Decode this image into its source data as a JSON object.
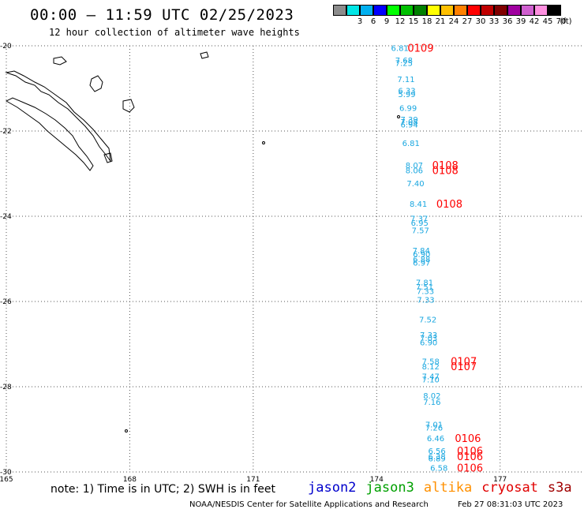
{
  "title": "00:00 – 11:59 UTC 02/25/2023",
  "subtitle": "12 hour collection of altimeter wave heights",
  "legend": {
    "unit": "(ft)",
    "bins": [
      {
        "label": "",
        "color": "#8c8c8c"
      },
      {
        "label": "3",
        "color": "#00e6e6"
      },
      {
        "label": "6",
        "color": "#00b0f0"
      },
      {
        "label": "9",
        "color": "#0000ff"
      },
      {
        "label": "12",
        "color": "#00ff00"
      },
      {
        "label": "15",
        "color": "#00c000"
      },
      {
        "label": "18",
        "color": "#008000"
      },
      {
        "label": "21",
        "color": "#ffff00"
      },
      {
        "label": "24",
        "color": "#ffc000"
      },
      {
        "label": "27",
        "color": "#ff8000"
      },
      {
        "label": "30",
        "color": "#ff0000"
      },
      {
        "label": "33",
        "color": "#c00000"
      },
      {
        "label": "36",
        "color": "#800000"
      },
      {
        "label": "39",
        "color": "#a000a0"
      },
      {
        "label": "42",
        "color": "#d060d0"
      },
      {
        "label": "45",
        "color": "#ff90e0"
      },
      {
        "label": "70",
        "color": "#000000"
      }
    ]
  },
  "axes": {
    "lat_labels": [
      "-20",
      "-22",
      "-24",
      "-26",
      "-28",
      "-30"
    ],
    "lon_labels": [
      "165",
      "168",
      "171",
      "174",
      "177"
    ]
  },
  "observations": [
    {
      "lat": -20.05,
      "lon": 174.35,
      "swh": "6.81",
      "color": "#1aa7e0"
    },
    {
      "lat": -20.33,
      "lon": 174.45,
      "swh": "7.68",
      "color": "#1aa7e0"
    },
    {
      "lat": -20.4,
      "lon": 174.45,
      "swh": "7.25",
      "color": "#1aa7e0"
    },
    {
      "lat": -20.78,
      "lon": 174.5,
      "swh": "7.11",
      "color": "#1aa7e0"
    },
    {
      "lat": -21.05,
      "lon": 174.52,
      "swh": "6.33",
      "color": "#1aa7e0"
    },
    {
      "lat": -21.13,
      "lon": 174.52,
      "swh": "5.99",
      "color": "#1aa7e0"
    },
    {
      "lat": -21.45,
      "lon": 174.55,
      "swh": "6.99",
      "color": "#1aa7e0"
    },
    {
      "lat": -21.72,
      "lon": 174.58,
      "swh": "7.39",
      "color": "#1aa7e0"
    },
    {
      "lat": -21.78,
      "lon": 174.58,
      "swh": "7.08",
      "color": "#1aa7e0"
    },
    {
      "lat": -21.84,
      "lon": 174.58,
      "swh": "6.94",
      "color": "#1aa7e0"
    },
    {
      "lat": -22.28,
      "lon": 174.62,
      "swh": "6.81",
      "color": "#1aa7e0"
    },
    {
      "lat": -22.8,
      "lon": 174.7,
      "swh": "8.07",
      "color": "#1aa7e0"
    },
    {
      "lat": -22.92,
      "lon": 174.7,
      "swh": "8.06",
      "color": "#1aa7e0"
    },
    {
      "lat": -23.22,
      "lon": 174.73,
      "swh": "7.40",
      "color": "#1aa7e0"
    },
    {
      "lat": -23.7,
      "lon": 174.8,
      "swh": "8.41",
      "color": "#1aa7e0"
    },
    {
      "lat": -24.05,
      "lon": 174.82,
      "swh": "7.37",
      "color": "#1aa7e0"
    },
    {
      "lat": -24.15,
      "lon": 174.83,
      "swh": "6.95",
      "color": "#1aa7e0"
    },
    {
      "lat": -24.32,
      "lon": 174.85,
      "swh": "7.57",
      "color": "#1aa7e0"
    },
    {
      "lat": -24.8,
      "lon": 174.87,
      "swh": "7.84",
      "color": "#1aa7e0"
    },
    {
      "lat": -24.88,
      "lon": 174.88,
      "swh": "6.90",
      "color": "#1aa7e0"
    },
    {
      "lat": -25.0,
      "lon": 174.88,
      "swh": "6.88",
      "color": "#1aa7e0"
    },
    {
      "lat": -25.08,
      "lon": 174.88,
      "swh": "6.97",
      "color": "#1aa7e0"
    },
    {
      "lat": -25.55,
      "lon": 174.95,
      "swh": "7.81",
      "color": "#1aa7e0"
    },
    {
      "lat": -25.65,
      "lon": 174.95,
      "swh": "7.51",
      "color": "#1aa7e0"
    },
    {
      "lat": -25.75,
      "lon": 174.97,
      "swh": "7.33",
      "color": "#1aa7e0"
    },
    {
      "lat": -25.95,
      "lon": 174.98,
      "swh": "7.33",
      "color": "#1aa7e0"
    },
    {
      "lat": -26.42,
      "lon": 175.03,
      "swh": "7.52",
      "color": "#1aa7e0"
    },
    {
      "lat": -26.78,
      "lon": 175.05,
      "swh": "7.33",
      "color": "#1aa7e0"
    },
    {
      "lat": -26.85,
      "lon": 175.05,
      "swh": "7.03",
      "color": "#1aa7e0"
    },
    {
      "lat": -26.95,
      "lon": 175.05,
      "swh": "6.90",
      "color": "#1aa7e0"
    },
    {
      "lat": -27.4,
      "lon": 175.1,
      "swh": "7.58",
      "color": "#1aa7e0"
    },
    {
      "lat": -27.52,
      "lon": 175.1,
      "swh": "8.12",
      "color": "#1aa7e0"
    },
    {
      "lat": -27.75,
      "lon": 175.1,
      "swh": "7.47",
      "color": "#1aa7e0"
    },
    {
      "lat": -27.82,
      "lon": 175.1,
      "swh": "7.10",
      "color": "#1aa7e0"
    },
    {
      "lat": -28.2,
      "lon": 175.13,
      "swh": "8.02",
      "color": "#1aa7e0"
    },
    {
      "lat": -28.35,
      "lon": 175.13,
      "swh": "7.16",
      "color": "#1aa7e0"
    },
    {
      "lat": -28.88,
      "lon": 175.18,
      "swh": "7.01",
      "color": "#1aa7e0"
    },
    {
      "lat": -28.95,
      "lon": 175.18,
      "swh": "7.26",
      "color": "#1aa7e0"
    },
    {
      "lat": -29.2,
      "lon": 175.22,
      "swh": "6.46",
      "color": "#1aa7e0"
    },
    {
      "lat": -29.5,
      "lon": 175.25,
      "swh": "6.56",
      "color": "#1aa7e0"
    },
    {
      "lat": -29.63,
      "lon": 175.25,
      "swh": "6.38",
      "color": "#1aa7e0"
    },
    {
      "lat": -29.68,
      "lon": 175.25,
      "swh": "6.89",
      "color": "#1aa7e0"
    },
    {
      "lat": -29.9,
      "lon": 175.3,
      "swh": "6.58",
      "color": "#1aa7e0"
    }
  ],
  "pass_labels": [
    {
      "lat": -20.05,
      "lon": 174.75,
      "text": "0109",
      "color": "#ff0000"
    },
    {
      "lat": -22.8,
      "lon": 175.35,
      "text": "0108",
      "color": "#ff0000"
    },
    {
      "lat": -22.92,
      "lon": 175.35,
      "text": "0108",
      "color": "#ff0000"
    },
    {
      "lat": -23.7,
      "lon": 175.45,
      "text": "0108",
      "color": "#ff0000"
    },
    {
      "lat": -27.4,
      "lon": 175.8,
      "text": "0107",
      "color": "#ff0000"
    },
    {
      "lat": -27.52,
      "lon": 175.8,
      "text": "0107",
      "color": "#ff0000"
    },
    {
      "lat": -29.2,
      "lon": 175.9,
      "text": "0106",
      "color": "#ff0000"
    },
    {
      "lat": -29.5,
      "lon": 175.95,
      "text": "0106",
      "color": "#ff0000"
    },
    {
      "lat": -29.63,
      "lon": 175.95,
      "text": "0106",
      "color": "#ff0000"
    },
    {
      "lat": -29.9,
      "lon": 175.95,
      "text": "0106",
      "color": "#ff0000"
    }
  ],
  "note": "note: 1) Time is in UTC; 2) SWH is in feet",
  "satellites": [
    {
      "name": "jason2",
      "color": "#0000cc"
    },
    {
      "name": "jason3",
      "color": "#00a000"
    },
    {
      "name": "altika",
      "color": "#ff9000"
    },
    {
      "name": "cryosat",
      "color": "#e00000"
    },
    {
      "name": "s3a",
      "color": "#a00000"
    }
  ],
  "footer_left": "NOAA/NESDIS Center for Satellite Applications and Research",
  "footer_right": "Feb 27 08:31:03 UTC 2023"
}
